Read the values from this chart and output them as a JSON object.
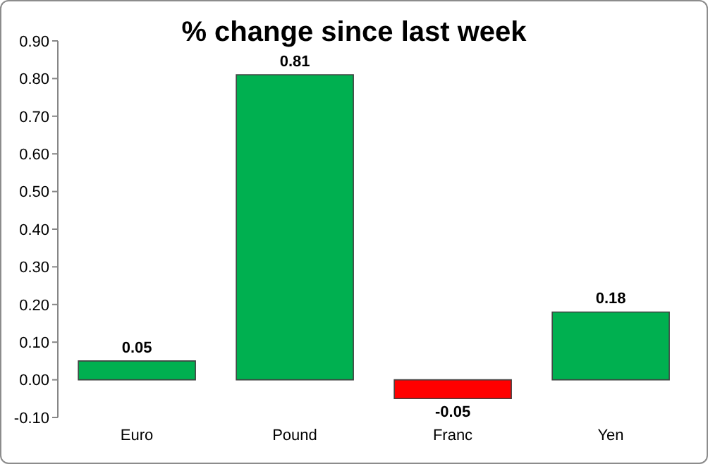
{
  "chart_data": {
    "type": "bar",
    "title": "% change since last week",
    "categories": [
      "Euro",
      "Pound",
      "Franc",
      "Yen"
    ],
    "values": [
      0.05,
      0.81,
      -0.05,
      0.18
    ],
    "colors": [
      "#00b050",
      "#00b050",
      "#ff0000",
      "#00b050"
    ],
    "data_labels": true,
    "ylim": [
      -0.1,
      0.9
    ],
    "yticks": [
      {
        "value": -0.1,
        "label": "-0.10"
      },
      {
        "value": 0,
        "label": "0.00"
      },
      {
        "value": 0.1,
        "label": "0.10"
      },
      {
        "value": 0.2,
        "label": "0.20"
      },
      {
        "value": 0.3,
        "label": "0.30"
      },
      {
        "value": 0.4,
        "label": "0.40"
      },
      {
        "value": 0.5,
        "label": "0.50"
      },
      {
        "value": 0.6,
        "label": "0.60"
      },
      {
        "value": 0.7,
        "label": "0.70"
      },
      {
        "value": 0.8,
        "label": "0.80"
      },
      {
        "value": 0.9,
        "label": "0.90"
      }
    ],
    "grid": false,
    "legend": false
  }
}
